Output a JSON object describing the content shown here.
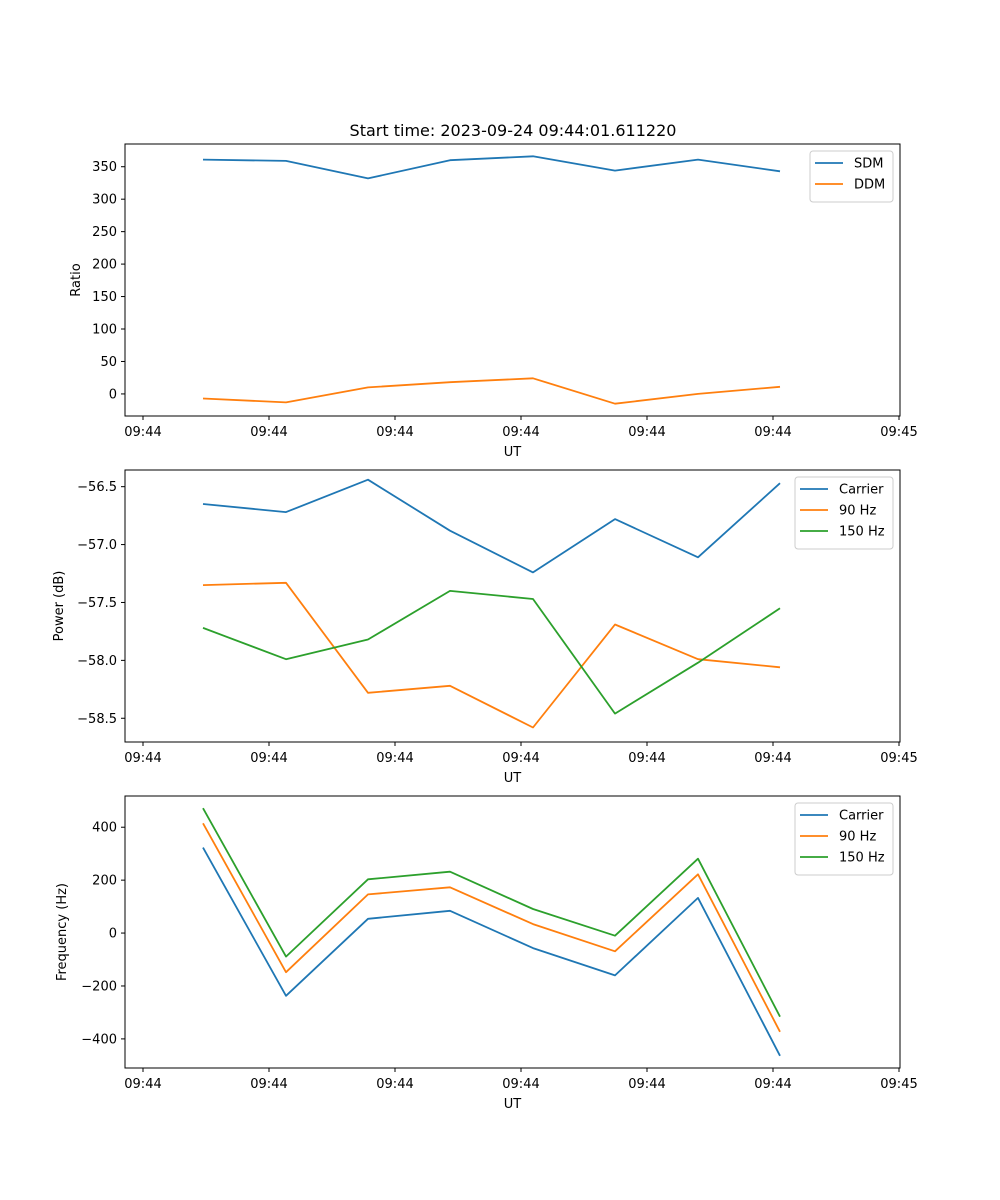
{
  "figure": {
    "title": "Start time: 2023-09-24 09:44:01.611220"
  },
  "chart_data": [
    {
      "type": "line",
      "title": "Start time: 2023-09-24 09:44:01.611220",
      "xlabel": "UT",
      "ylabel": "Ratio",
      "x_tick_labels": [
        "09:44",
        "09:44",
        "09:44",
        "09:44",
        "09:44",
        "09:44",
        "09:45"
      ],
      "yticks": [
        0,
        50,
        100,
        150,
        200,
        250,
        300,
        350
      ],
      "ylim": [
        -34,
        385
      ],
      "legend_position": "top-right",
      "series": [
        {
          "name": "SDM",
          "color": "#1f77b4",
          "values": [
            361,
            359,
            332,
            360,
            366,
            344,
            361,
            343
          ]
        },
        {
          "name": "DDM",
          "color": "#ff7f0e",
          "values": [
            -7,
            -13,
            10,
            18,
            24,
            -15,
            0,
            11
          ]
        }
      ]
    },
    {
      "type": "line",
      "title": "",
      "xlabel": "UT",
      "ylabel": "Power (dB)",
      "x_tick_labels": [
        "09:44",
        "09:44",
        "09:44",
        "09:44",
        "09:44",
        "09:44",
        "09:45"
      ],
      "yticks": [
        -58.5,
        -58.0,
        -57.5,
        -57.0,
        -56.5
      ],
      "ytick_labels": [
        "−58.5",
        "−58.0",
        "−57.5",
        "−57.0",
        "−56.5"
      ],
      "ylim": [
        -58.705,
        -56.356
      ],
      "legend_position": "top-right",
      "series": [
        {
          "name": "Carrier",
          "color": "#1f77b4",
          "values": [
            -56.65,
            -56.72,
            -56.44,
            -56.88,
            -57.24,
            -56.78,
            -57.11,
            -56.47
          ]
        },
        {
          "name": "90 Hz",
          "color": "#ff7f0e",
          "values": [
            -57.35,
            -57.33,
            -58.28,
            -58.22,
            -58.58,
            -57.69,
            -57.99,
            -58.06
          ]
        },
        {
          "name": "150 Hz",
          "color": "#2ca02c",
          "values": [
            -57.72,
            -57.99,
            -57.82,
            -57.4,
            -57.47,
            -58.46,
            -58.02,
            -57.55
          ]
        }
      ]
    },
    {
      "type": "line",
      "title": "",
      "xlabel": "UT",
      "ylabel": "Frequency (Hz)",
      "x_tick_labels": [
        "09:44",
        "09:44",
        "09:44",
        "09:44",
        "09:44",
        "09:44",
        "09:45"
      ],
      "yticks": [
        -400,
        -200,
        0,
        200,
        400
      ],
      "ytick_labels": [
        "−400",
        "−200",
        "0",
        "200",
        "400"
      ],
      "ylim": [
        -510,
        518
      ],
      "legend_position": "top-right",
      "series": [
        {
          "name": "Carrier",
          "color": "#1f77b4",
          "values": [
            323,
            -237,
            54,
            84,
            -57,
            -160,
            133,
            -464
          ]
        },
        {
          "name": "90 Hz",
          "color": "#ff7f0e",
          "values": [
            415,
            -148,
            146,
            173,
            34,
            -69,
            222,
            -373
          ]
        },
        {
          "name": "150 Hz",
          "color": "#2ca02c",
          "values": [
            472,
            -89,
            203,
            232,
            91,
            -10,
            281,
            -316
          ]
        }
      ]
    }
  ]
}
